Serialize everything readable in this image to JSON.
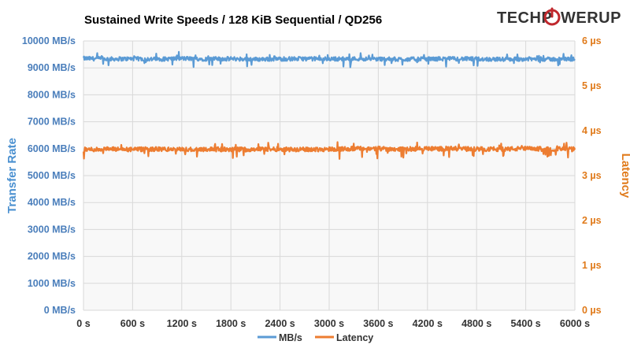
{
  "chart_data": {
    "type": "line",
    "title": "Sustained Write Speeds / 128 KiB Sequential / QD256",
    "brand": {
      "left": "TECHP",
      "right": "WERUP",
      "icon": "power-icon"
    },
    "x": {
      "label": "",
      "min": 0,
      "max": 6000,
      "ticks": [
        0,
        600,
        1200,
        1800,
        2400,
        3000,
        3600,
        4200,
        4800,
        5400,
        6000
      ],
      "tick_labels": [
        "0 s",
        "600 s",
        "1200 s",
        "1800 s",
        "2400 s",
        "3000 s",
        "3600 s",
        "4200 s",
        "4800 s",
        "5400 s",
        "6000 s"
      ]
    },
    "y_left": {
      "label": "Transfer Rate",
      "min": 0,
      "max": 10000,
      "ticks": [
        0,
        1000,
        2000,
        3000,
        4000,
        5000,
        6000,
        7000,
        8000,
        9000,
        10000
      ],
      "tick_labels": [
        "0 MB/s",
        "1000 MB/s",
        "2000 MB/s",
        "3000 MB/s",
        "4000 MB/s",
        "5000 MB/s",
        "6000 MB/s",
        "7000 MB/s",
        "8000 MB/s",
        "9000 MB/s",
        "10000 MB/s"
      ],
      "color": "#4a7ebb"
    },
    "y_right": {
      "label": "Latency",
      "min": 0,
      "max": 6,
      "ticks": [
        0,
        1,
        2,
        3,
        4,
        5,
        6
      ],
      "tick_labels": [
        "0 µs",
        "1 µs",
        "2 µs",
        "3 µs",
        "4 µs",
        "5 µs",
        "6 µs"
      ],
      "color": "#e07a1a"
    },
    "grid": true,
    "legend_position": "bottom",
    "series": [
      {
        "name": "MB/s",
        "axis": "left",
        "color": "#5b9bd5",
        "x": [
          0,
          300,
          600,
          900,
          1200,
          1500,
          1800,
          2100,
          2400,
          2700,
          3000,
          3300,
          3600,
          3900,
          4200,
          4500,
          4800,
          5100,
          5400,
          5700,
          6000
        ],
        "values": [
          9350,
          9330,
          9340,
          9320,
          9350,
          9330,
          9340,
          9320,
          9330,
          9340,
          9330,
          9340,
          9330,
          9320,
          9330,
          9340,
          9330,
          9320,
          9330,
          9320,
          9330
        ],
        "spread": 150
      },
      {
        "name": "Latency",
        "axis": "right",
        "color": "#ed7d31",
        "x": [
          0,
          300,
          600,
          900,
          1200,
          1500,
          1800,
          2100,
          2400,
          2700,
          3000,
          3300,
          3600,
          3900,
          4200,
          4500,
          4800,
          5100,
          5400,
          5700,
          6000
        ],
        "values": [
          3.58,
          3.59,
          3.58,
          3.59,
          3.58,
          3.59,
          3.58,
          3.59,
          3.59,
          3.58,
          3.59,
          3.6,
          3.6,
          3.59,
          3.6,
          3.6,
          3.59,
          3.59,
          3.6,
          3.59,
          3.59
        ],
        "spread": 0.1
      }
    ]
  }
}
